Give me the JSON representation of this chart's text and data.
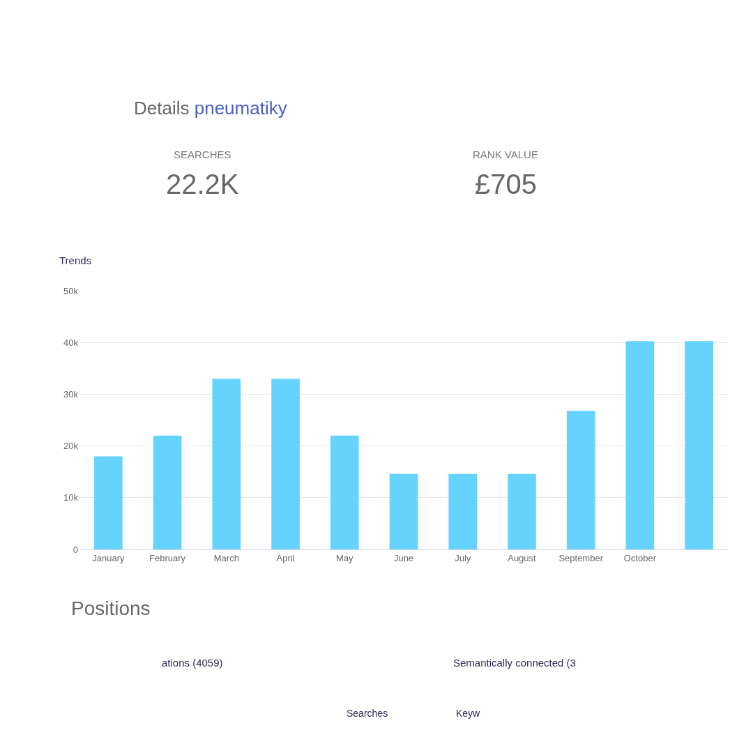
{
  "chart_data": [
    {
      "type": "other",
      "title": "Details pneumatiky",
      "annotations": [
        "SEARCHES",
        "22.2K",
        "RANK VALUE",
        "£705"
      ]
    },
    {
      "type": "bar",
      "title": "Trends",
      "categories": [
        "January",
        "February",
        "March",
        "April",
        "May",
        "June",
        "July",
        "August",
        "September",
        "October",
        null
      ],
      "values": [
        18000,
        22000,
        33000,
        33000,
        22000,
        14600,
        14600,
        14600,
        26800,
        40300,
        40300
      ],
      "color": "#66d3ff",
      "ylim": [
        0,
        50000
      ],
      "yticks": [
        0,
        {
          "value": 10000,
          "label": "10k"
        },
        {
          "value": 20000,
          "label": "20k"
        },
        {
          "value": 30000,
          "label": "30k"
        },
        {
          "value": 40000,
          "label": "40k"
        },
        {
          "value": 50000,
          "label": "50k"
        }
      ],
      "grid": "y"
    },
    {
      "type": "other",
      "title": "Positions",
      "annotations": [
        "ations (4059)",
        "Semantically connected (3",
        "Searches",
        "Keyw"
      ]
    }
  ]
}
